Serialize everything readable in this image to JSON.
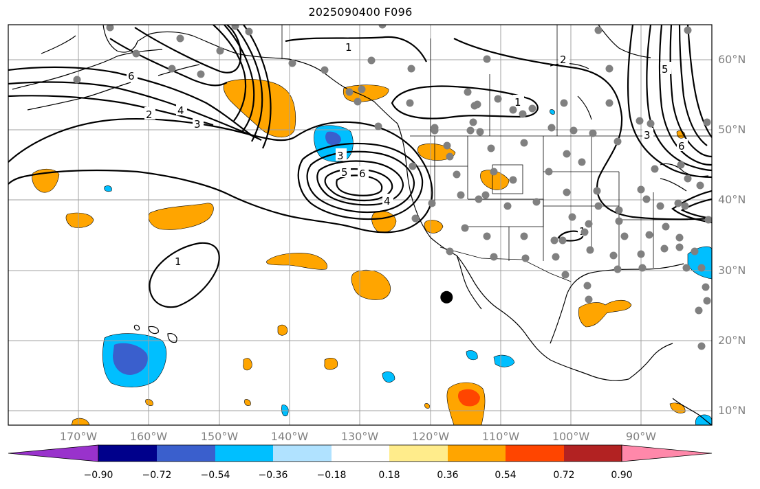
{
  "title": "2025090400 F096",
  "map": {
    "lon_range": [
      -180,
      -80
    ],
    "lat_range": [
      8,
      65
    ],
    "lon_labels": [
      "170°W",
      "160°W",
      "150°W",
      "140°W",
      "130°W",
      "120°W",
      "110°W",
      "100°W",
      "90°W"
    ],
    "lat_labels": [
      "60°N",
      "50°N",
      "40°N",
      "30°N",
      "20°N",
      "10°N"
    ],
    "contour_labels": [
      "1",
      "2",
      "3",
      "4",
      "5",
      "6"
    ],
    "marker": {
      "lon": -117.7,
      "lat": 26.2,
      "color": "#000000"
    },
    "station_dot_color": "#808080",
    "contour_color": "#000000",
    "gridline_color": "#a0a0a0"
  },
  "colorbar": {
    "ticks": [
      "−0.90",
      "−0.72",
      "−0.54",
      "−0.36",
      "−0.18",
      "0.18",
      "0.36",
      "0.54",
      "0.72",
      "0.90"
    ],
    "colors": [
      "#9932cc",
      "#00008b",
      "#3a5fcd",
      "#00bfff",
      "#b0e2ff",
      "#ffffff",
      "#ffec8b",
      "#ffa500",
      "#ff4500",
      "#b22222",
      "#ff88aa"
    ]
  }
}
